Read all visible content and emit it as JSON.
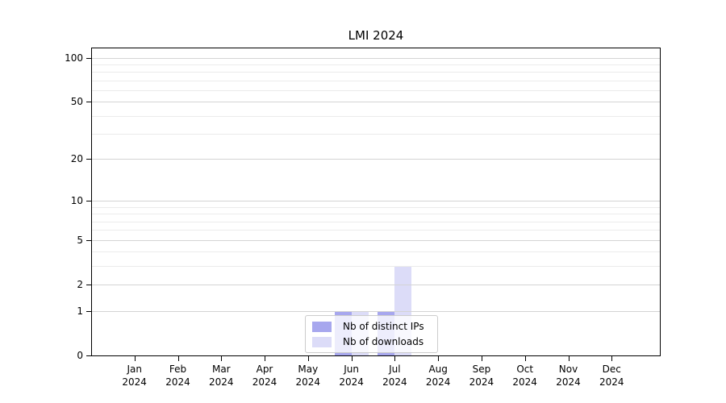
{
  "chart_data": {
    "type": "bar",
    "title": "LMI 2024",
    "xlabel": "",
    "ylabel": "",
    "categories": [
      "Jan 2024",
      "Feb 2024",
      "Mar 2024",
      "Apr 2024",
      "May 2024",
      "Jun 2024",
      "Jul 2024",
      "Aug 2024",
      "Sep 2024",
      "Oct 2024",
      "Nov 2024",
      "Dec 2024"
    ],
    "series": [
      {
        "name": "Nb of distinct IPs",
        "color": "#a7a7ee",
        "values": [
          0,
          0,
          0,
          0,
          0,
          1,
          1,
          0,
          0,
          0,
          0,
          0
        ]
      },
      {
        "name": "Nb of downloads",
        "color": "#dcdcf8",
        "values": [
          0,
          0,
          0,
          0,
          0,
          1,
          3,
          0,
          0,
          0,
          0,
          0
        ]
      }
    ],
    "y_axis": {
      "scale": "log10(1+value)",
      "ticks": [
        0,
        1,
        2,
        5,
        10,
        20,
        50,
        100
      ],
      "tick_labels": [
        "0",
        "1",
        "2",
        "5",
        "10",
        "20",
        "50",
        "100"
      ],
      "minor_gridlines": [
        3,
        4,
        6,
        7,
        8,
        9,
        30,
        40,
        60,
        70,
        80,
        90
      ],
      "range": [
        0,
        116
      ]
    },
    "grid": "horizontal major+minor, drawn above bars",
    "legend_position": "lower center inside axes",
    "colors": {
      "grid_major": "#d4d4d4",
      "grid_minor": "#ebebeb",
      "spine": "#000000",
      "legend_border": "#cccccc"
    }
  }
}
